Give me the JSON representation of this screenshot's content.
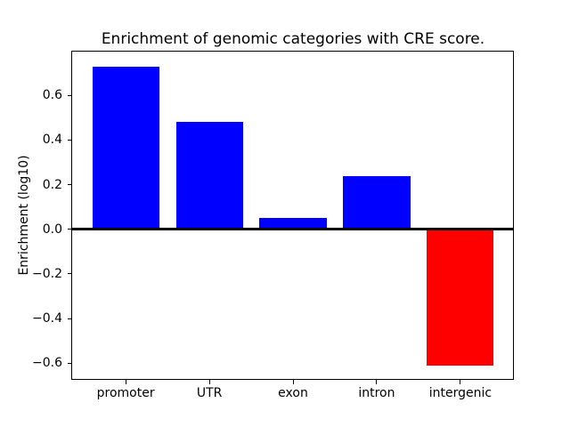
{
  "chart_data": {
    "type": "bar",
    "title": "Enrichment of genomic categories with CRE score.",
    "xlabel": "",
    "ylabel": "Enrichment (log10)",
    "categories": [
      "promoter",
      "UTR",
      "exon",
      "intron",
      "intergenic"
    ],
    "values": [
      0.73,
      0.48,
      0.05,
      0.24,
      -0.61
    ],
    "bar_colors": [
      "#0000ff",
      "#0000ff",
      "#0000ff",
      "#0000ff",
      "#ff0000"
    ],
    "positive_color": "#0000ff",
    "negative_color": "#ff0000",
    "ylim": [
      -0.675,
      0.796
    ],
    "yticks": [
      -0.6,
      -0.4,
      -0.2,
      0.0,
      0.2,
      0.4,
      0.6
    ],
    "ytick_labels": [
      "−0.6",
      "−0.4",
      "−0.2",
      "0.0",
      "0.2",
      "0.4",
      "0.6"
    ],
    "zero_line": true,
    "grid": false,
    "legend_position": "none",
    "background_color": "#ffffff",
    "spine_color": "#000000"
  }
}
